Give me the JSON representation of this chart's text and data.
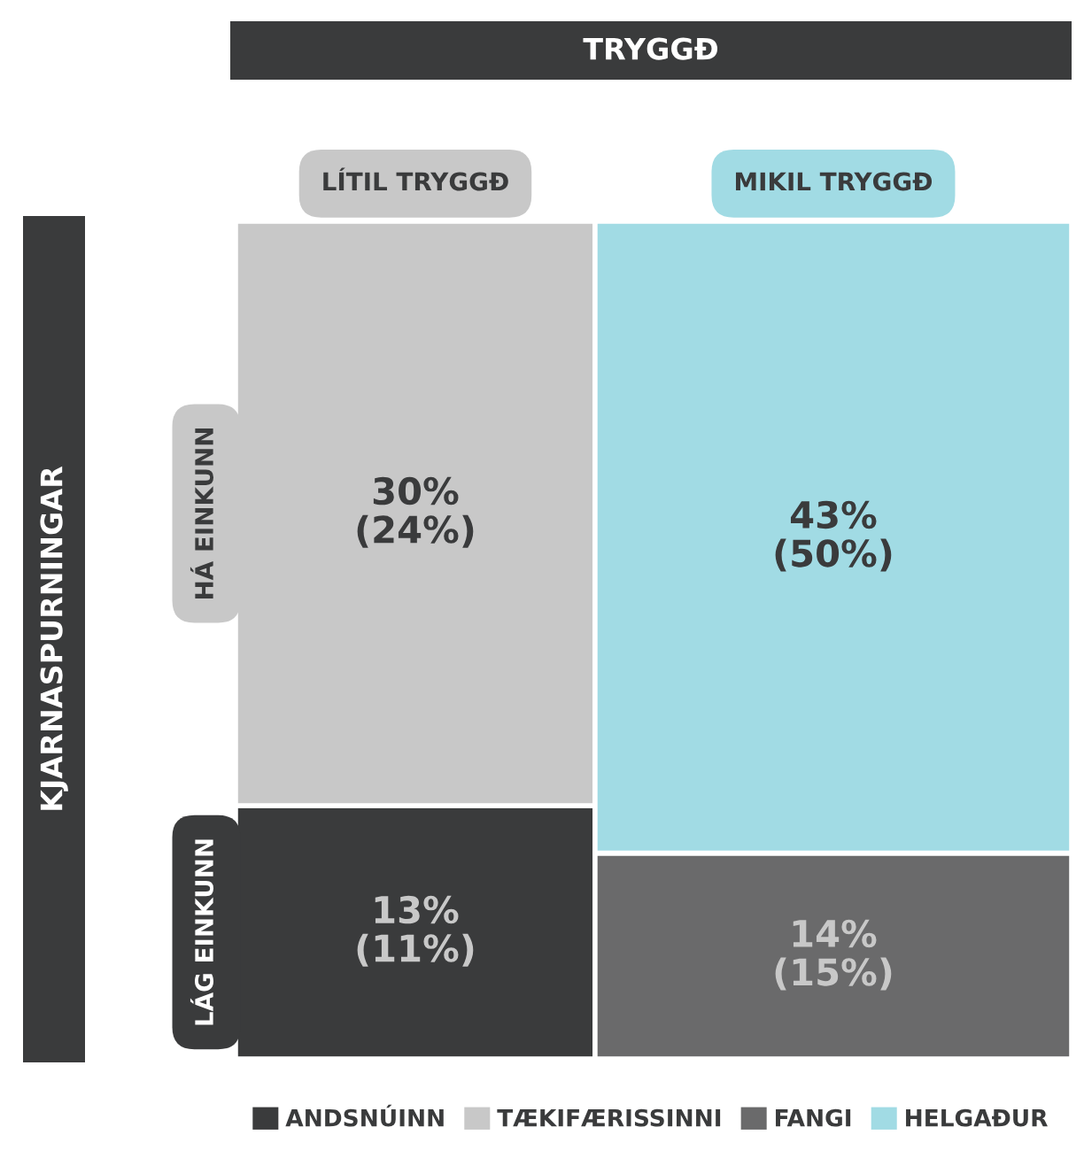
{
  "chart_data": {
    "type": "other",
    "xlabel": "TRYGGÐ",
    "ylabel": "KJARNASPURNINGAR",
    "categories": [
      "LÍTIL TRYGGÐ",
      "MIKIL TRYGGÐ"
    ],
    "y_categories": [
      "HÁ EINKUNN",
      "LÁG EINKUNN"
    ],
    "legend": "bottom",
    "series": [
      {
        "name": "ANDSNÚINN",
        "color": "#3a3b3c",
        "values": [
          13,
          null
        ],
        "value_labels": [
          "13%\n(11%)",
          null
        ]
      },
      {
        "name": "TÆKIFÆRISSINNI",
        "color": "#c8c8c8",
        "values": [
          30,
          null
        ],
        "value_labels": [
          "30%\n(24%)",
          null
        ]
      },
      {
        "name": "FANGI",
        "color": "#6a6a6b",
        "values": [
          null,
          14
        ],
        "value_labels": [
          null,
          "14%\n(15%)"
        ]
      },
      {
        "name": "HELGAÐUR",
        "color": "#a1dbe4",
        "values": [
          null,
          43
        ],
        "value_labels": [
          null,
          "43%\n(50%)"
        ]
      }
    ]
  }
}
